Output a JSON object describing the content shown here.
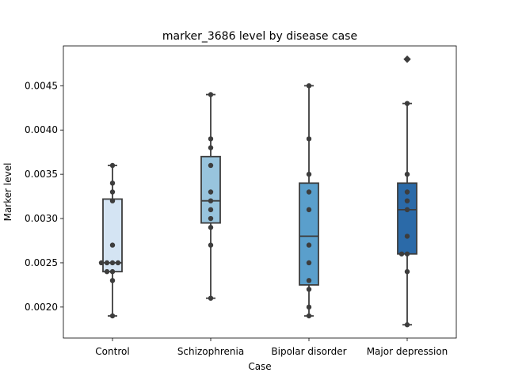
{
  "chart_data": {
    "type": "box",
    "title": "marker_3686 level by disease case",
    "xlabel": "Case",
    "ylabel": "Marker level",
    "ylim": [
      0.00165,
      0.00495
    ],
    "yticks": [
      "0.0020",
      "0.0025",
      "0.0030",
      "0.0035",
      "0.0040",
      "0.0045"
    ],
    "categories": [
      "Control",
      "Schizophrenia",
      "Bipolar disorder",
      "Major depression"
    ],
    "colors": [
      "#d4e4f3",
      "#98c4dd",
      "#5a9fcc",
      "#2b6aa8"
    ],
    "groups": [
      {
        "name": "Control",
        "whisker_low": 0.0019,
        "q1": 0.0024,
        "median": 0.0025,
        "q3": 0.00322,
        "whisker_high": 0.0036,
        "outliers": [],
        "points": [
          0.0019,
          0.0023,
          0.0024,
          0.0024,
          0.0025,
          0.0025,
          0.0025,
          0.0025,
          0.0027,
          0.0032,
          0.0033,
          0.0034,
          0.0036
        ]
      },
      {
        "name": "Schizophrenia",
        "whisker_low": 0.0021,
        "q1": 0.00295,
        "median": 0.0032,
        "q3": 0.0037,
        "whisker_high": 0.0044,
        "outliers": [],
        "points": [
          0.0021,
          0.0027,
          0.0029,
          0.003,
          0.0031,
          0.0032,
          0.0033,
          0.0036,
          0.0038,
          0.0039,
          0.0044
        ]
      },
      {
        "name": "Bipolar disorder",
        "whisker_low": 0.0019,
        "q1": 0.00225,
        "median": 0.0028,
        "q3": 0.0034,
        "whisker_high": 0.0045,
        "outliers": [],
        "points": [
          0.0019,
          0.002,
          0.0022,
          0.0023,
          0.0025,
          0.0027,
          0.0031,
          0.0033,
          0.0035,
          0.0039,
          0.0045
        ]
      },
      {
        "name": "Major depression",
        "whisker_low": 0.0018,
        "q1": 0.0026,
        "median": 0.0031,
        "q3": 0.0034,
        "whisker_high": 0.0043,
        "outliers": [
          0.0048
        ],
        "points": [
          0.0018,
          0.0024,
          0.0026,
          0.0026,
          0.0028,
          0.0031,
          0.0032,
          0.0033,
          0.0035,
          0.0043,
          0.0048
        ]
      }
    ]
  }
}
